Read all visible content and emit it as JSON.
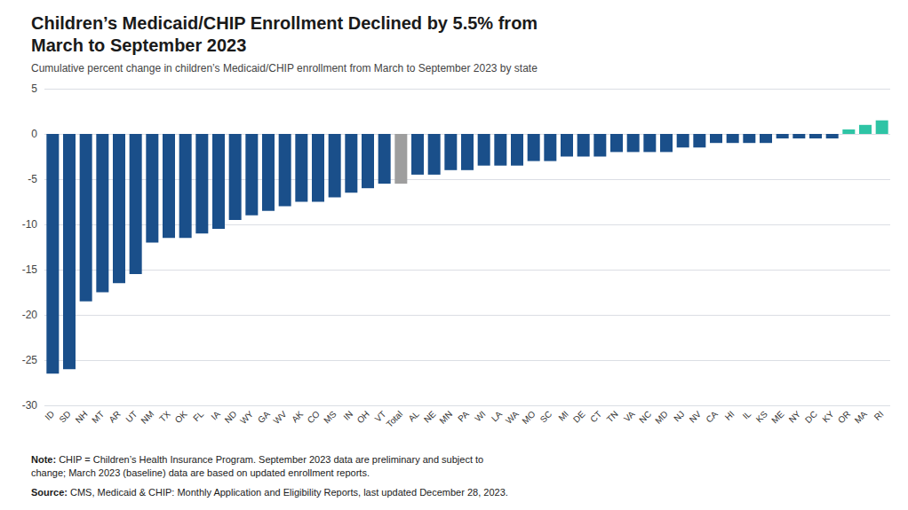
{
  "chart_data": {
    "type": "bar",
    "title": "Children’s Medicaid/CHIP Enrollment Declined by 5.5% from\nMarch to September 2023",
    "subtitle": "Cumulative percent change in children’s Medicaid/CHIP enrollment from March to September 2023 by state",
    "annotations": [
      "Note: CHIP = Children’s Health Insurance Program. September 2023 data are preliminary and subject to\nchange; March 2023 (baseline) data are based on updated enrollment reports.",
      "Source: CMS, Medicaid & CHIP: Monthly Application and Eligibility Reports, last updated December 28, 2023."
    ],
    "categories": [
      "ID",
      "SD",
      "NH",
      "MT",
      "AR",
      "UT",
      "NM",
      "TX",
      "OK",
      "FL",
      "IA",
      "ND",
      "WY",
      "GA",
      "WV",
      "AK",
      "CO",
      "MS",
      "IN",
      "OH",
      "VT",
      "Total",
      "AL",
      "NE",
      "MN",
      "PA",
      "WI",
      "LA",
      "WA",
      "MO",
      "SC",
      "MI",
      "DE",
      "CT",
      "TN",
      "VA",
      "NC",
      "MD",
      "NJ",
      "NV",
      "CA",
      "HI",
      "IL",
      "KS",
      "ME",
      "NY",
      "DC",
      "KY",
      "OR",
      "MA",
      "RI"
    ],
    "values": [
      -26.5,
      -26.0,
      -18.5,
      -17.5,
      -16.5,
      -15.5,
      -12.0,
      -11.5,
      -11.5,
      -11.0,
      -10.5,
      -9.5,
      -9.0,
      -8.5,
      -8.0,
      -7.5,
      -7.5,
      -7.0,
      -6.5,
      -6.0,
      -5.5,
      -5.5,
      -4.5,
      -4.5,
      -4.0,
      -4.0,
      -3.5,
      -3.5,
      -3.5,
      -3.0,
      -3.0,
      -2.5,
      -2.5,
      -2.5,
      -2.0,
      -2.0,
      -2.0,
      -2.0,
      -1.5,
      -1.5,
      -1.0,
      -1.0,
      -1.0,
      -1.0,
      -0.5,
      -0.5,
      -0.5,
      -0.5,
      0.5,
      1.0,
      1.5
    ],
    "colors": [
      "#1a4f8a",
      "#1a4f8a",
      "#1a4f8a",
      "#1a4f8a",
      "#1a4f8a",
      "#1a4f8a",
      "#1a4f8a",
      "#1a4f8a",
      "#1a4f8a",
      "#1a4f8a",
      "#1a4f8a",
      "#1a4f8a",
      "#1a4f8a",
      "#1a4f8a",
      "#1a4f8a",
      "#1a4f8a",
      "#1a4f8a",
      "#1a4f8a",
      "#1a4f8a",
      "#1a4f8a",
      "#1a4f8a",
      "#9e9e9e",
      "#1a4f8a",
      "#1a4f8a",
      "#1a4f8a",
      "#1a4f8a",
      "#1a4f8a",
      "#1a4f8a",
      "#1a4f8a",
      "#1a4f8a",
      "#1a4f8a",
      "#1a4f8a",
      "#1a4f8a",
      "#1a4f8a",
      "#1a4f8a",
      "#1a4f8a",
      "#1a4f8a",
      "#1a4f8a",
      "#1a4f8a",
      "#1a4f8a",
      "#1a4f8a",
      "#1a4f8a",
      "#1a4f8a",
      "#1a4f8a",
      "#1a4f8a",
      "#1a4f8a",
      "#1a4f8a",
      "#1a4f8a",
      "#2ec4a5",
      "#2ec4a5",
      "#2ec4a5"
    ],
    "ylim": [
      -30,
      5
    ],
    "yticks": [
      5,
      0,
      -5,
      -10,
      -15,
      -20,
      -25,
      -30
    ],
    "grid": true
  }
}
